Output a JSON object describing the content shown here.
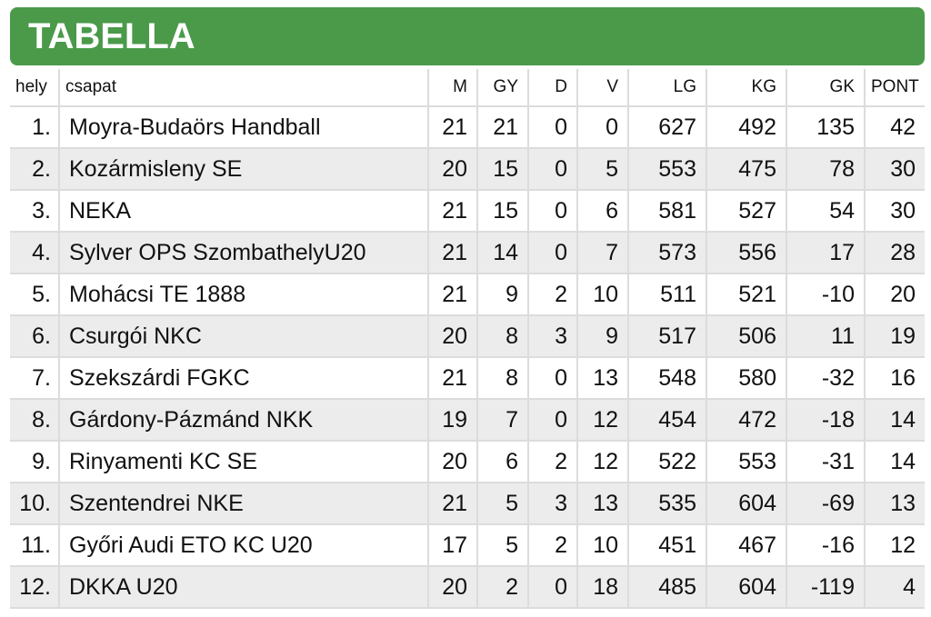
{
  "header": {
    "title": "TABELLA"
  },
  "table": {
    "columns": [
      "hely",
      "csapat",
      "M",
      "GY",
      "D",
      "V",
      "LG",
      "KG",
      "GK",
      "PONT"
    ],
    "rows": [
      {
        "pos": "1.",
        "team": "Moyra-Budaörs Handball",
        "m": "21",
        "gy": "21",
        "d": "0",
        "v": "0",
        "lg": "627",
        "kg": "492",
        "gk": "135",
        "pont": "42"
      },
      {
        "pos": "2.",
        "team": "Kozármisleny SE",
        "m": "20",
        "gy": "15",
        "d": "0",
        "v": "5",
        "lg": "553",
        "kg": "475",
        "gk": "78",
        "pont": "30"
      },
      {
        "pos": "3.",
        "team": "NEKA",
        "m": "21",
        "gy": "15",
        "d": "0",
        "v": "6",
        "lg": "581",
        "kg": "527",
        "gk": "54",
        "pont": "30"
      },
      {
        "pos": "4.",
        "team": "Sylver OPS SzombathelyU20",
        "m": "21",
        "gy": "14",
        "d": "0",
        "v": "7",
        "lg": "573",
        "kg": "556",
        "gk": "17",
        "pont": "28"
      },
      {
        "pos": "5.",
        "team": "Mohácsi TE 1888",
        "m": "21",
        "gy": "9",
        "d": "2",
        "v": "10",
        "lg": "511",
        "kg": "521",
        "gk": "-10",
        "pont": "20"
      },
      {
        "pos": "6.",
        "team": "Csurgói NKC",
        "m": "20",
        "gy": "8",
        "d": "3",
        "v": "9",
        "lg": "517",
        "kg": "506",
        "gk": "11",
        "pont": "19"
      },
      {
        "pos": "7.",
        "team": "Szekszárdi FGKC",
        "m": "21",
        "gy": "8",
        "d": "0",
        "v": "13",
        "lg": "548",
        "kg": "580",
        "gk": "-32",
        "pont": "16"
      },
      {
        "pos": "8.",
        "team": "Gárdony-Pázmánd NKK",
        "m": "19",
        "gy": "7",
        "d": "0",
        "v": "12",
        "lg": "454",
        "kg": "472",
        "gk": "-18",
        "pont": "14"
      },
      {
        "pos": "9.",
        "team": "Rinyamenti KC SE",
        "m": "20",
        "gy": "6",
        "d": "2",
        "v": "12",
        "lg": "522",
        "kg": "553",
        "gk": "-31",
        "pont": "14"
      },
      {
        "pos": "10.",
        "team": "Szentendrei NKE",
        "m": "21",
        "gy": "5",
        "d": "3",
        "v": "13",
        "lg": "535",
        "kg": "604",
        "gk": "-69",
        "pont": "13"
      },
      {
        "pos": "11.",
        "team": "Győri Audi ETO KC U20",
        "m": "17",
        "gy": "5",
        "d": "2",
        "v": "10",
        "lg": "451",
        "kg": "467",
        "gk": "-16",
        "pont": "12"
      },
      {
        "pos": "12.",
        "team": "DKKA U20",
        "m": "20",
        "gy": "2",
        "d": "0",
        "v": "18",
        "lg": "485",
        "kg": "604",
        "gk": "-119",
        "pont": "4"
      }
    ]
  }
}
